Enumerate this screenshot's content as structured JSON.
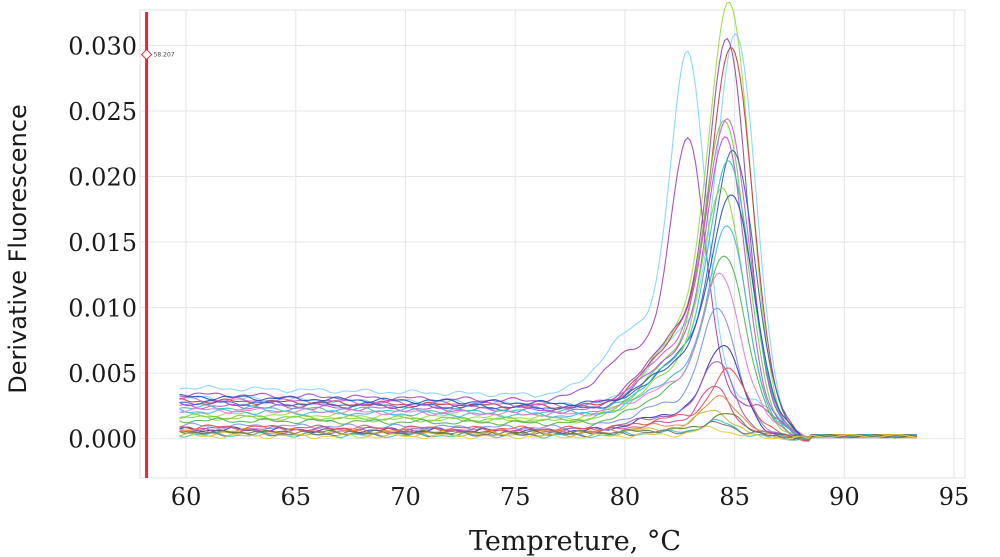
{
  "chart_data": {
    "type": "line",
    "xlabel": "Tempreture, °C",
    "ylabel": "Derivative Fluorescence",
    "xlim": [
      57.9,
      95.5
    ],
    "ylim": [
      -0.003,
      0.0327
    ],
    "xticks": [
      60,
      65,
      70,
      75,
      80,
      85,
      90,
      95
    ],
    "xtick_labels": [
      "60",
      "65",
      "70",
      "75",
      "80",
      "85",
      "90",
      "95"
    ],
    "yticks": [
      0.0,
      0.005,
      0.01,
      0.015,
      0.02,
      0.025,
      0.03
    ],
    "ytick_labels": [
      "0.000",
      "0.005",
      "0.010",
      "0.015",
      "0.020",
      "0.025",
      "0.030"
    ],
    "grid": true,
    "legend": "none",
    "cursor": {
      "x": 58.2,
      "marker_y": 0.0293,
      "label": "58.207",
      "color": "#e0283a"
    },
    "x_range": [
      59.7,
      93.4
    ],
    "series": [
      {
        "color": "#7fd3ff",
        "baseline": 0.0039,
        "peak_x": 82.9,
        "peak": 0.0245,
        "width": 1.1
      },
      {
        "color": "#7fd3ff",
        "baseline": 0.0031,
        "peak_x": 85.1,
        "peak": 0.0265,
        "width": 1.2
      },
      {
        "color": "#9bdc3a",
        "baseline": 0.0019,
        "peak_x": 84.8,
        "peak": 0.0295,
        "width": 1.3
      },
      {
        "color": "#c03a3a",
        "baseline": 0.0029,
        "peak_x": 84.9,
        "peak": 0.0255,
        "width": 1.3
      },
      {
        "color": "#8e44ad",
        "baseline": 0.0027,
        "peak_x": 84.7,
        "peak": 0.0262,
        "width": 1.2
      },
      {
        "color": "#a040c0",
        "baseline": 0.0034,
        "peak_x": 82.9,
        "peak": 0.0188,
        "width": 1.1
      },
      {
        "color": "#6fcf3a",
        "baseline": 0.0017,
        "peak_x": 84.6,
        "peak": 0.0213,
        "width": 1.3
      },
      {
        "color": "#d257c8",
        "baseline": 0.003,
        "peak_x": 84.7,
        "peak": 0.0205,
        "width": 1.3
      },
      {
        "color": "#b84fd0",
        "baseline": 0.0025,
        "peak_x": 84.6,
        "peak": 0.0195,
        "width": 1.2
      },
      {
        "color": "#2e5fcf",
        "baseline": 0.0028,
        "peak_x": 85.0,
        "peak": 0.0182,
        "width": 1.3
      },
      {
        "color": "#2ec0b0",
        "baseline": 0.0024,
        "peak_x": 84.8,
        "peak": 0.0178,
        "width": 1.3
      },
      {
        "color": "#86d43a",
        "baseline": 0.0016,
        "peak_x": 84.5,
        "peak": 0.0165,
        "width": 1.3
      },
      {
        "color": "#1f4fb5",
        "baseline": 0.0032,
        "peak_x": 84.9,
        "peak": 0.015,
        "width": 1.3
      },
      {
        "color": "#3fb6e0",
        "baseline": 0.0021,
        "peak_x": 84.7,
        "peak": 0.0135,
        "width": 1.2
      },
      {
        "color": "#4db34d",
        "baseline": 0.0014,
        "peak_x": 84.6,
        "peak": 0.0118,
        "width": 1.3
      },
      {
        "color": "#e07fd0",
        "baseline": 0.0022,
        "peak_x": 84.4,
        "peak": 0.01,
        "width": 1.2
      },
      {
        "color": "#7a8fe0",
        "baseline": 0.001,
        "peak_x": 84.3,
        "peak": 0.0085,
        "width": 1.1
      },
      {
        "color": "#3a2fb0",
        "baseline": 0.0007,
        "peak_x": 84.5,
        "peak": 0.0062,
        "width": 1.1
      },
      {
        "color": "#9b59b6",
        "baseline": 0.0008,
        "peak_x": 84.2,
        "peak": 0.005,
        "width": 1.0
      },
      {
        "color": "#e05050",
        "baseline": 0.0009,
        "peak_x": 84.8,
        "peak": 0.0042,
        "width": 1.1
      },
      {
        "color": "#cf3fa0",
        "baseline": 0.0006,
        "peak_x": 84.1,
        "peak": 0.0032,
        "width": 1.0
      },
      {
        "color": "#e08a3a",
        "baseline": 0.0006,
        "peak_x": 84.4,
        "peak": 0.0026,
        "width": 1.0
      },
      {
        "color": "#c8b43a",
        "baseline": 0.0004,
        "peak_x": 84.0,
        "peak": 0.0018,
        "width": 1.0
      },
      {
        "color": "#5a7a2a",
        "baseline": 0.0005,
        "peak_x": 84.6,
        "peak": 0.0014,
        "width": 1.0
      },
      {
        "color": "#3ac0c0",
        "baseline": 0.0003,
        "peak_x": 84.2,
        "peak": 0.001,
        "width": 1.0
      },
      {
        "color": "#707070",
        "baseline": 0.0004,
        "peak_x": 84.3,
        "peak": 0.0008,
        "width": 1.0
      },
      {
        "color": "#e0d040",
        "baseline": 0.0002,
        "peak_x": 84.0,
        "peak": 0.0006,
        "width": 1.0
      }
    ]
  }
}
